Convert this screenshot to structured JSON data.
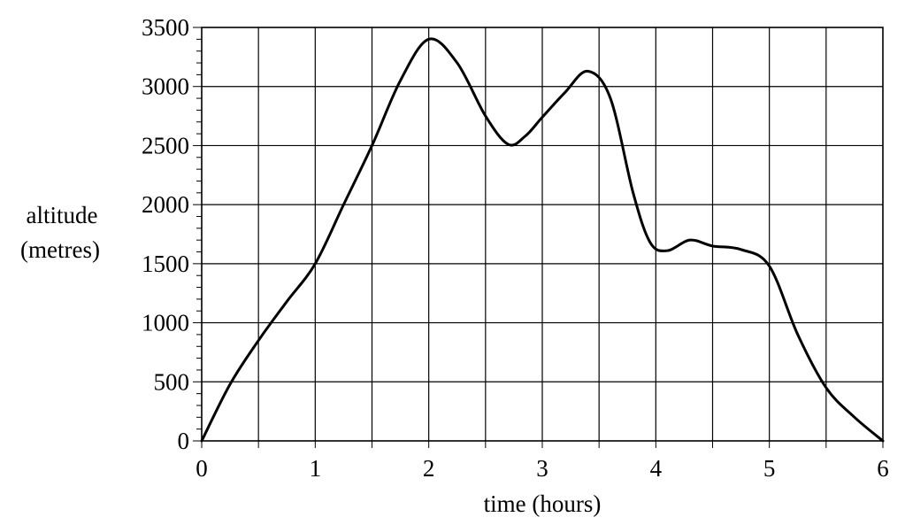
{
  "chart_data": {
    "type": "line",
    "title": "",
    "xlabel": "time (hours)",
    "ylabel_lines": [
      "altitude",
      "(metres)"
    ],
    "xlim": [
      0,
      6
    ],
    "ylim": [
      0,
      3500
    ],
    "x_ticks": [
      0,
      1,
      2,
      3,
      4,
      5,
      6
    ],
    "y_ticks": [
      0,
      500,
      1000,
      1500,
      2000,
      2500,
      3000,
      3500
    ],
    "x_grid_step": 0.5,
    "y_grid_step": 500,
    "y_minor_step": 100,
    "grid": true,
    "legend": "none",
    "series": [
      {
        "x": [
          0,
          0.25,
          0.5,
          0.75,
          1,
          1.25,
          1.5,
          1.75,
          2,
          2.25,
          2.5,
          2.7,
          2.85,
          3,
          3.2,
          3.4,
          3.6,
          3.8,
          3.95,
          4.1,
          4.3,
          4.5,
          4.75,
          5,
          5.25,
          5.5,
          5.75,
          6
        ],
        "y": [
          0,
          480,
          850,
          1180,
          1500,
          2000,
          2500,
          3050,
          3400,
          3200,
          2750,
          2510,
          2580,
          2740,
          2950,
          3130,
          2900,
          2100,
          1680,
          1610,
          1700,
          1650,
          1620,
          1480,
          900,
          450,
          200,
          0
        ]
      }
    ]
  }
}
